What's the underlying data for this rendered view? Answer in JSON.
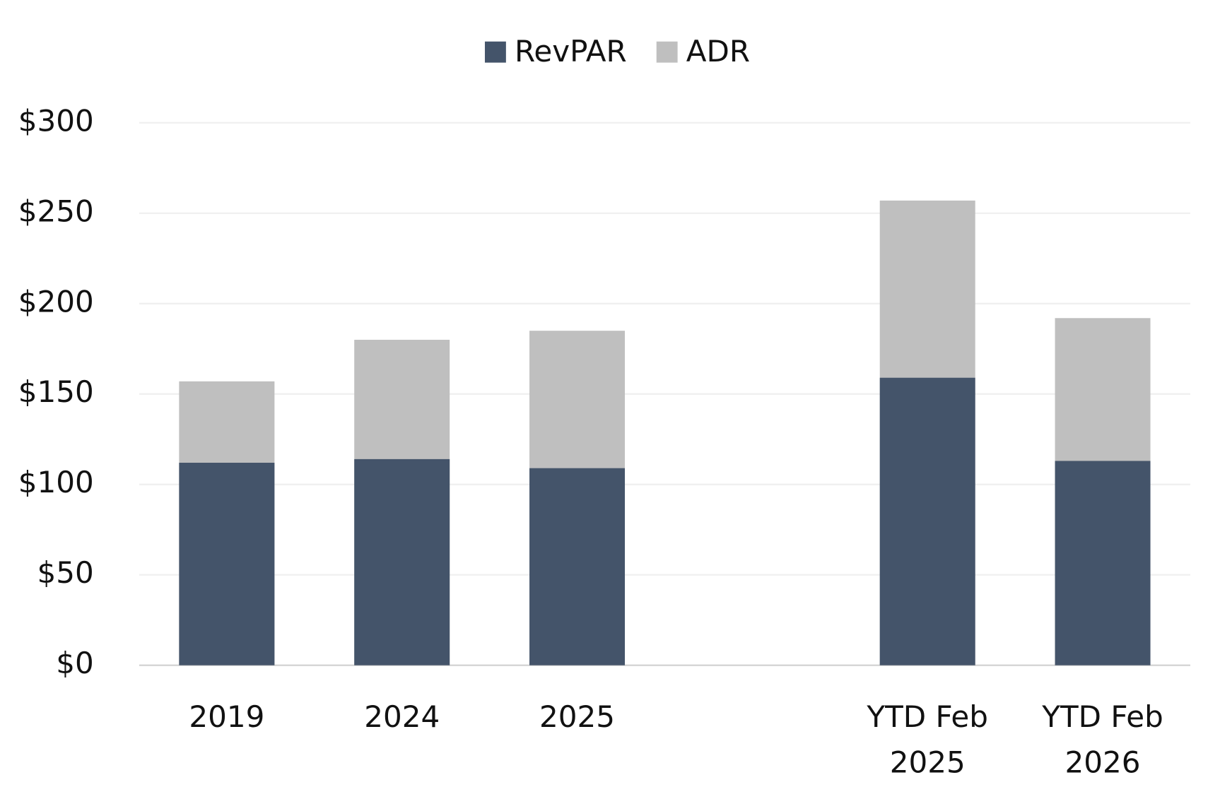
{
  "chart_data": {
    "type": "bar",
    "bar_mode": "overlap",
    "categories": [
      "2019",
      "2024",
      "2025",
      null,
      "YTD Feb 2025",
      "YTD Feb 2026"
    ],
    "series": [
      {
        "name": "ADR",
        "color": "#bfbfbf",
        "values": [
          157,
          180,
          185,
          null,
          257,
          192
        ]
      },
      {
        "name": "RevPAR",
        "color": "#44546a",
        "values": [
          112,
          114,
          109,
          null,
          159,
          113
        ]
      }
    ],
    "legend_order": [
      1,
      0
    ],
    "legend": "top",
    "ylim": [
      0,
      300
    ],
    "yticks": [
      {
        "value": 0,
        "label": "$0"
      },
      {
        "value": 50,
        "label": "$50"
      },
      {
        "value": 100,
        "label": "$100"
      },
      {
        "value": 150,
        "label": "$150"
      },
      {
        "value": 200,
        "label": "$200"
      },
      {
        "value": 250,
        "label": "$250"
      },
      {
        "value": 300,
        "label": "$300"
      }
    ],
    "grid": true
  }
}
